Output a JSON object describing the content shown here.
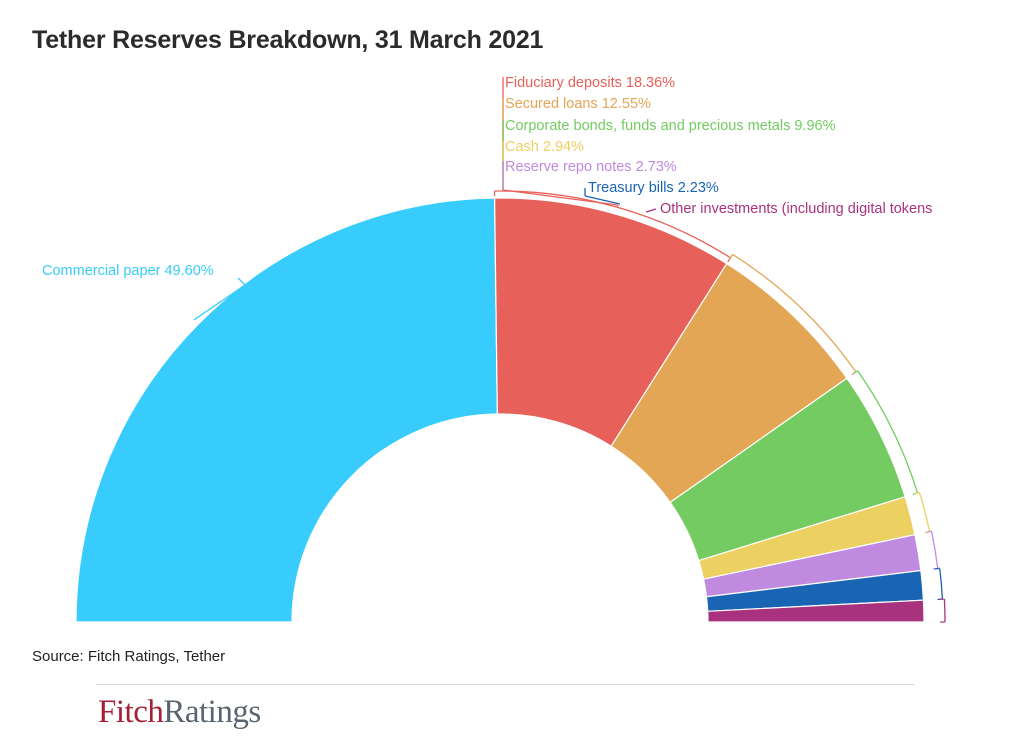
{
  "title": "Tether Reserves Breakdown, 31 March 2021",
  "source": "Source: Fitch Ratings, Tether",
  "logo": {
    "part1": "Fitch",
    "part2": "Ratings"
  },
  "chart_data": {
    "type": "pie",
    "variant": "half-donut",
    "title": "Tether Reserves Breakdown, 31 March 2021",
    "unit": "%",
    "slices": [
      {
        "name": "Commercial paper",
        "value": 49.6,
        "label": "Commercial paper 49.60%",
        "color": "#38ccfc"
      },
      {
        "name": "Fiduciary deposits",
        "value": 18.36,
        "label": "Fiduciary deposits 18.36%",
        "color": "#e8605a"
      },
      {
        "name": "Secured loans",
        "value": 12.55,
        "label": "Secured loans 12.55%",
        "color": "#e3a654"
      },
      {
        "name": "Corporate bonds, funds and precious metals",
        "value": 9.96,
        "label": "Corporate bonds, funds and precious metals 9.96%",
        "color": "#73cb61"
      },
      {
        "name": "Cash",
        "value": 2.94,
        "label": "Cash 2.94%",
        "color": "#ecd061"
      },
      {
        "name": "Reserve repo notes",
        "value": 2.73,
        "label": "Reserve repo notes 2.73%",
        "color": "#c08ae0"
      },
      {
        "name": "Treasury bills",
        "value": 2.23,
        "label": "Treasury bills 2.23%",
        "color": "#1a64b4"
      },
      {
        "name": "Other investments (including digital tokens",
        "value": 1.64,
        "label": "Other investments (including digital tokens",
        "color": "#a8327e"
      }
    ]
  }
}
